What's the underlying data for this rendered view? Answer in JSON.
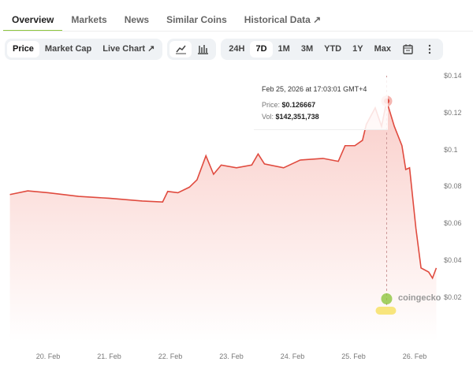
{
  "tabs": [
    {
      "label": "Overview",
      "active": true
    },
    {
      "label": "Markets"
    },
    {
      "label": "News"
    },
    {
      "label": "Similar Coins"
    },
    {
      "label": "Historical Data ↗"
    }
  ],
  "toolbar": {
    "metrics": [
      {
        "label": "Price",
        "active": true
      },
      {
        "label": "Market Cap"
      },
      {
        "label": "Live Chart ↗"
      }
    ],
    "chart_types": [
      {
        "icon": "line-chart-icon",
        "active": true
      },
      {
        "icon": "candlestick-chart-icon"
      }
    ],
    "ranges": [
      {
        "label": "24H"
      },
      {
        "label": "7D",
        "active": true
      },
      {
        "label": "1M"
      },
      {
        "label": "3M"
      },
      {
        "label": "YTD"
      },
      {
        "label": "1Y"
      },
      {
        "label": "Max"
      }
    ],
    "calendar_icon": "calendar-icon",
    "more_icon": "more-vertical-icon"
  },
  "tooltip": {
    "date": "Feb 25, 2026 at 17:03:01 GMT+4",
    "price_label": "Price:",
    "price": "$0.126667",
    "vol_label": "Vol:",
    "vol": "$142,351,738"
  },
  "watermark": "coingecko",
  "colors": {
    "line": "#e04b3f",
    "fill": "#f9c9c4",
    "accent": "#8dc63f"
  },
  "chart_data": {
    "type": "area",
    "yticks": [
      "$0.14",
      "$0.12",
      "$0.1",
      "$0.08",
      "$0.06",
      "$0.04",
      "$0.02"
    ],
    "ytick_values": [
      0.14,
      0.12,
      0.1,
      0.08,
      0.06,
      0.04,
      0.02
    ],
    "xticks": [
      "20. Feb",
      "21. Feb",
      "22. Feb",
      "23. Feb",
      "24. Feb",
      "25. Feb",
      "26. Feb"
    ],
    "xtick_dates": [
      "2026-02-20",
      "2026-02-21",
      "2026-02-22",
      "2026-02-23",
      "2026-02-24",
      "2026-02-25",
      "2026-02-26"
    ],
    "ylim": [
      0.0,
      0.145
    ],
    "grid": false,
    "points": [
      [
        "2026-02-19T09:00",
        0.076
      ],
      [
        "2026-02-19T16:00",
        0.078
      ],
      [
        "2026-02-20T00:00",
        0.077
      ],
      [
        "2026-02-20T12:00",
        0.075
      ],
      [
        "2026-02-21T00:00",
        0.074
      ],
      [
        "2026-02-21T13:00",
        0.0725
      ],
      [
        "2026-02-21T21:00",
        0.072
      ],
      [
        "2026-02-21T23:00",
        0.0777
      ],
      [
        "2026-02-22T03:00",
        0.077
      ],
      [
        "2026-02-22T07:30",
        0.08
      ],
      [
        "2026-02-22T10:30",
        0.084
      ],
      [
        "2026-02-22T14:00",
        0.097
      ],
      [
        "2026-02-22T17:00",
        0.087
      ],
      [
        "2026-02-22T20:00",
        0.092
      ],
      [
        "2026-02-23T02:00",
        0.0905
      ],
      [
        "2026-02-23T08:00",
        0.092
      ],
      [
        "2026-02-23T10:30",
        0.098
      ],
      [
        "2026-02-23T13:00",
        0.0926
      ],
      [
        "2026-02-23T20:30",
        0.0905
      ],
      [
        "2026-02-24T03:00",
        0.0947
      ],
      [
        "2026-02-24T12:00",
        0.0956
      ],
      [
        "2026-02-24T18:00",
        0.094
      ],
      [
        "2026-02-24T20:40",
        0.1025
      ],
      [
        "2026-02-25T00:30",
        0.1025
      ],
      [
        "2026-02-25T03:30",
        0.1054
      ],
      [
        "2026-02-25T05:00",
        0.114
      ],
      [
        "2026-02-25T08:30",
        0.123
      ],
      [
        "2026-02-25T11:00",
        0.113
      ],
      [
        "2026-02-25T13:00",
        0.126667
      ],
      [
        "2026-02-25T16:00",
        0.113
      ],
      [
        "2026-02-25T19:00",
        0.1025
      ],
      [
        "2026-02-25T20:30",
        0.0896
      ],
      [
        "2026-02-25T22:00",
        0.0905
      ],
      [
        "2026-02-26T00:30",
        0.0576
      ],
      [
        "2026-02-26T02:30",
        0.0362
      ],
      [
        "2026-02-26T05:30",
        0.034
      ],
      [
        "2026-02-26T07:00",
        0.0307
      ],
      [
        "2026-02-26T08:30",
        0.0362
      ]
    ],
    "highlight_index": 28
  }
}
